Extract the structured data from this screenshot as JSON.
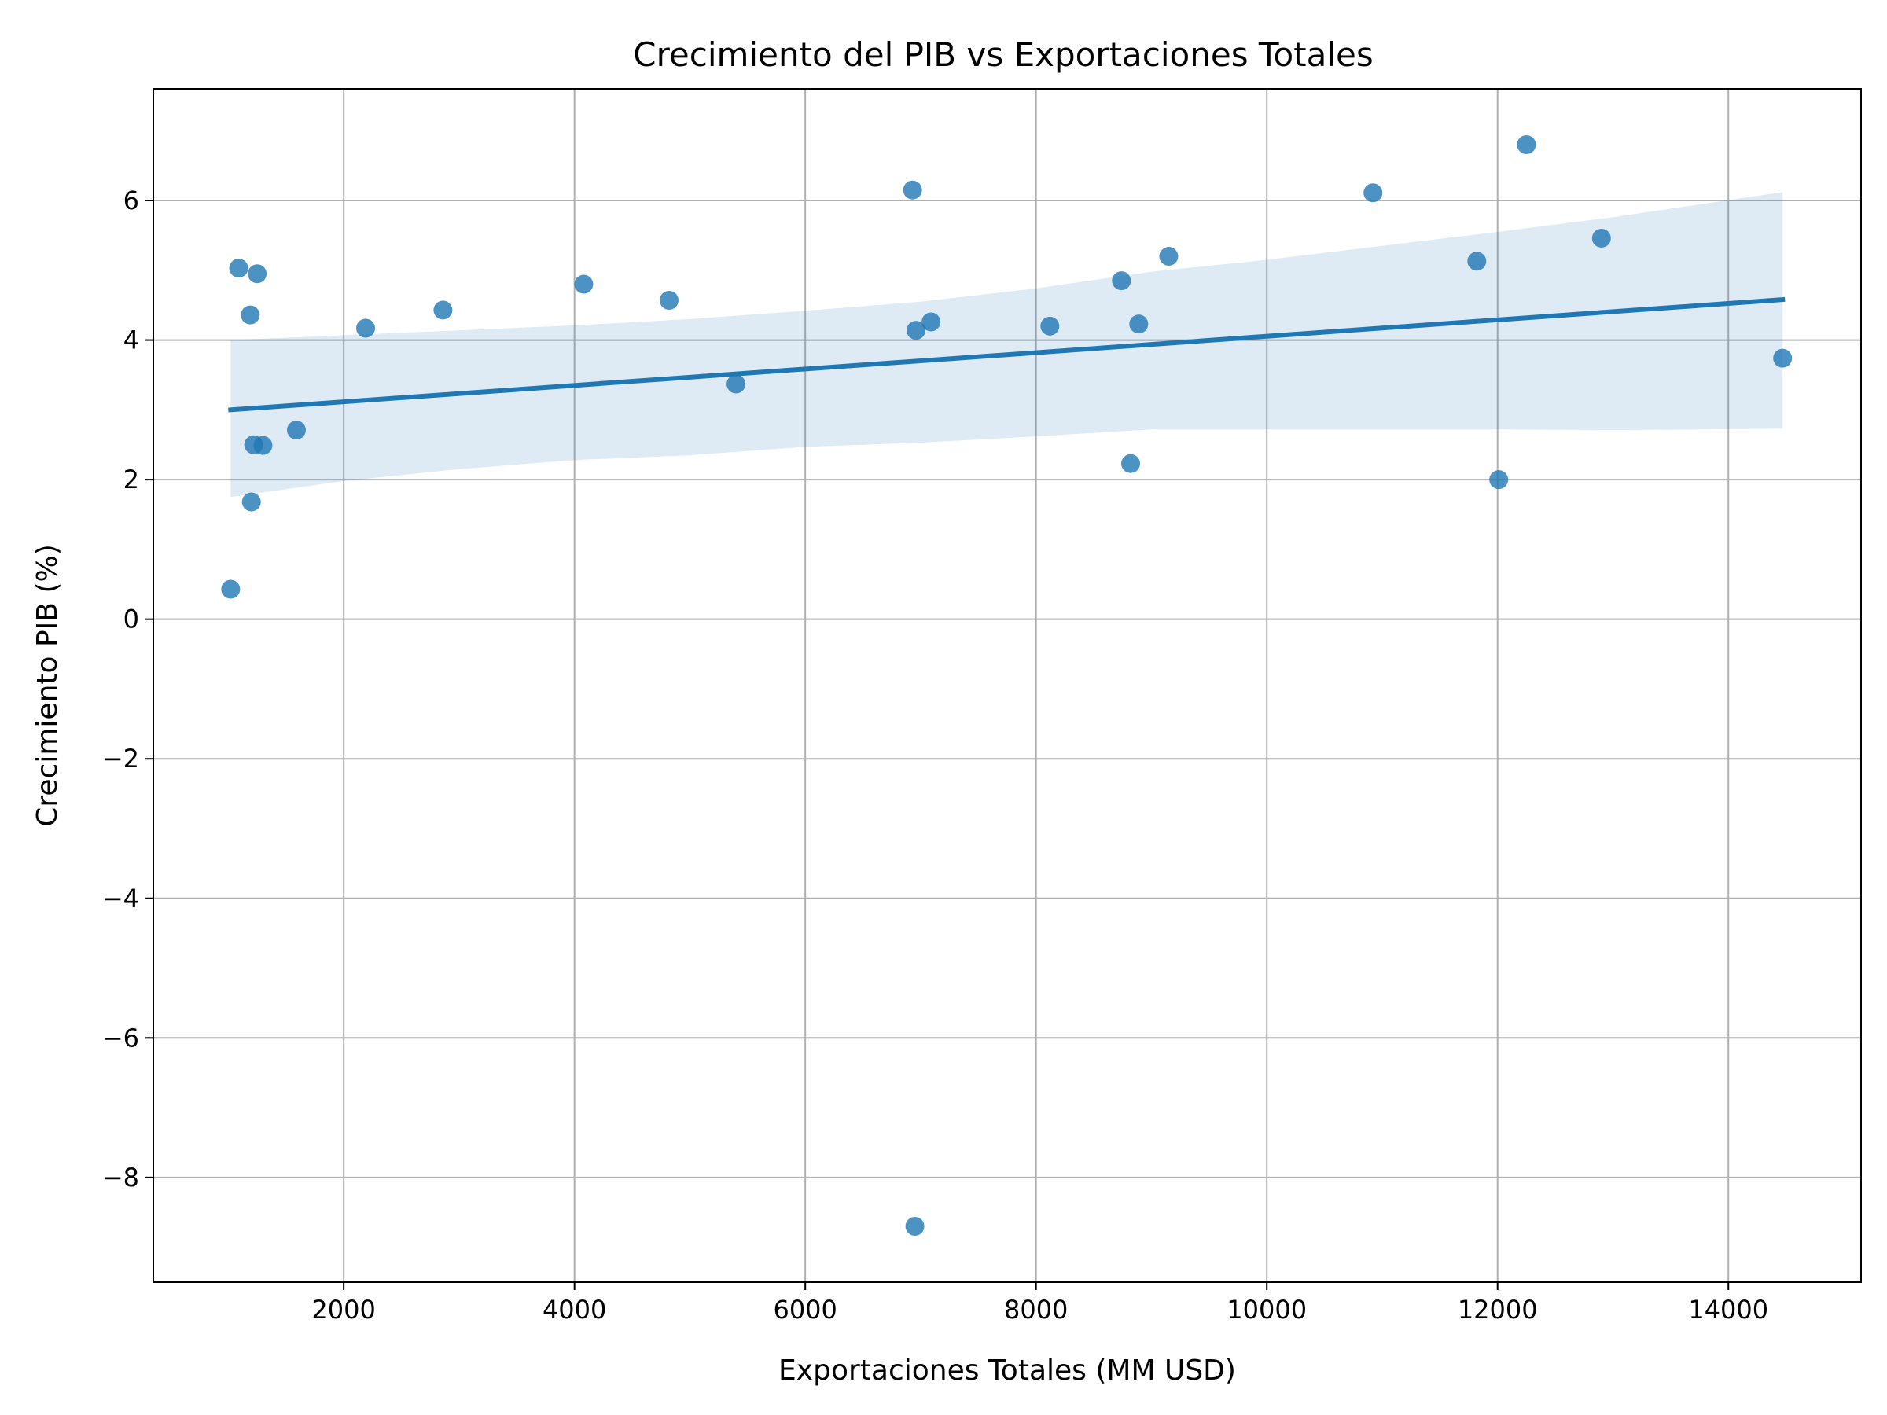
{
  "chart_data": {
    "type": "scatter",
    "title": "Crecimiento del PIB vs Exportaciones Totales",
    "xlabel": "Exportaciones Totales (MM USD)",
    "ylabel": "Crecimiento PIB (%)",
    "xlim": [
      350,
      15150
    ],
    "ylim": [
      -9.5,
      7.6
    ],
    "xticks": [
      2000,
      4000,
      6000,
      8000,
      10000,
      12000,
      14000
    ],
    "yticks": [
      -8,
      -6,
      -4,
      -2,
      0,
      2,
      4,
      6
    ],
    "xtick_labels": [
      "2000",
      "4000",
      "6000",
      "8000",
      "10000",
      "12000",
      "14000"
    ],
    "ytick_labels": [
      "−8",
      "−6",
      "−4",
      "−2",
      "0",
      "2",
      "4",
      "6"
    ],
    "grid": true,
    "colors": {
      "points": "#1f77b4",
      "line": "#1f77b4",
      "band": "#1f77b4",
      "grid": "#b0b0b0"
    },
    "points": [
      {
        "x": 1020,
        "y": 0.43
      },
      {
        "x": 1090,
        "y": 5.03
      },
      {
        "x": 1190,
        "y": 4.36
      },
      {
        "x": 1200,
        "y": 1.68
      },
      {
        "x": 1220,
        "y": 2.5
      },
      {
        "x": 1250,
        "y": 4.95
      },
      {
        "x": 1300,
        "y": 2.49
      },
      {
        "x": 1590,
        "y": 2.71
      },
      {
        "x": 2190,
        "y": 4.17
      },
      {
        "x": 2860,
        "y": 4.43
      },
      {
        "x": 4080,
        "y": 4.8
      },
      {
        "x": 4820,
        "y": 4.57
      },
      {
        "x": 5400,
        "y": 3.37
      },
      {
        "x": 6930,
        "y": 6.15
      },
      {
        "x": 6950,
        "y": -8.7
      },
      {
        "x": 6960,
        "y": 4.14
      },
      {
        "x": 7090,
        "y": 4.26
      },
      {
        "x": 8120,
        "y": 4.2
      },
      {
        "x": 8740,
        "y": 4.85
      },
      {
        "x": 8820,
        "y": 2.23
      },
      {
        "x": 8890,
        "y": 4.23
      },
      {
        "x": 9150,
        "y": 5.2
      },
      {
        "x": 10920,
        "y": 6.11
      },
      {
        "x": 11820,
        "y": 5.13
      },
      {
        "x": 12010,
        "y": 2.0
      },
      {
        "x": 12250,
        "y": 6.8
      },
      {
        "x": 12900,
        "y": 5.46
      },
      {
        "x": 14470,
        "y": 3.74
      }
    ],
    "regression": {
      "x": [
        1020,
        14470
      ],
      "y": [
        3.0,
        4.58
      ]
    },
    "confidence_band": {
      "x": [
        1020,
        2000,
        3000,
        4000,
        5000,
        6000,
        7000,
        8000,
        9000,
        10000,
        11000,
        12000,
        13000,
        14470
      ],
      "lower": [
        1.75,
        1.98,
        2.15,
        2.28,
        2.35,
        2.47,
        2.53,
        2.62,
        2.72,
        2.72,
        2.72,
        2.72,
        2.71,
        2.73
      ],
      "upper": [
        4.0,
        4.07,
        4.14,
        4.21,
        4.3,
        4.42,
        4.55,
        4.74,
        4.98,
        5.15,
        5.35,
        5.55,
        5.76,
        6.12
      ]
    }
  }
}
